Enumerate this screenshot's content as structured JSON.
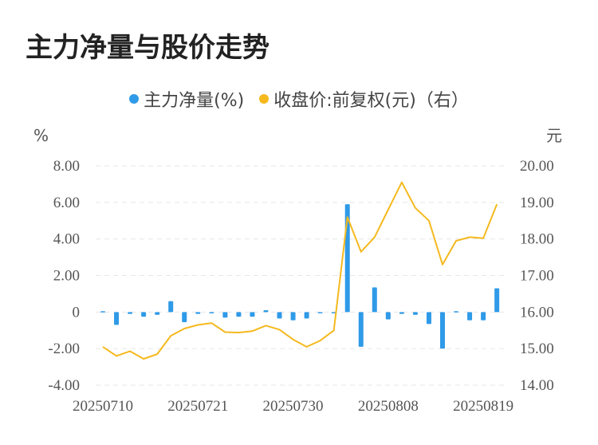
{
  "title": "主力净量与股价走势",
  "legend": {
    "series1_label": "主力净量(%)",
    "series2_label": "收盘价:前复权(元)（右）"
  },
  "colors": {
    "bar": "#2f9ae8",
    "line": "#f5b91e",
    "grid": "#e6e6e6"
  },
  "chart_data": {
    "type": "bar",
    "title": "主力净量与股价走势",
    "y_left_unit": "%",
    "y_right_unit": "元",
    "y_left_ticks": [
      "8.00",
      "6.00",
      "4.00",
      "2.00",
      "0",
      "-2.00",
      "-4.00"
    ],
    "y_right_ticks": [
      "20.00",
      "19.00",
      "18.00",
      "17.00",
      "16.00",
      "15.00",
      "14.00"
    ],
    "ylim_left": [
      -4,
      8
    ],
    "ylim_right": [
      14,
      20
    ],
    "x_tick_labels": [
      "20250710",
      "20250721",
      "20250730",
      "20250808",
      "20250819"
    ],
    "x_tick_indices": [
      0,
      7,
      14,
      21,
      28
    ],
    "grid": true,
    "legend_position": "top-center",
    "series": [
      {
        "name": "主力净量(%)",
        "type": "bar",
        "axis": "left",
        "values": [
          0.05,
          -0.7,
          -0.1,
          -0.25,
          -0.15,
          0.6,
          -0.55,
          -0.1,
          -0.05,
          -0.3,
          -0.25,
          -0.25,
          0.1,
          -0.35,
          -0.45,
          -0.35,
          0.0,
          0.0,
          5.9,
          -1.9,
          1.35,
          -0.4,
          -0.1,
          -0.15,
          -0.65,
          -2.0,
          0.05,
          -0.45,
          -0.45,
          1.3
        ]
      },
      {
        "name": "收盘价:前复权(元)（右）",
        "type": "line",
        "axis": "right",
        "values": [
          15.05,
          14.8,
          14.93,
          14.72,
          14.85,
          15.35,
          15.55,
          15.65,
          15.7,
          15.45,
          15.44,
          15.48,
          15.63,
          15.52,
          15.25,
          15.05,
          15.22,
          15.5,
          18.6,
          17.65,
          18.05,
          18.8,
          19.55,
          18.85,
          18.5,
          17.3,
          17.95,
          18.05,
          18.02,
          18.95
        ]
      }
    ]
  }
}
